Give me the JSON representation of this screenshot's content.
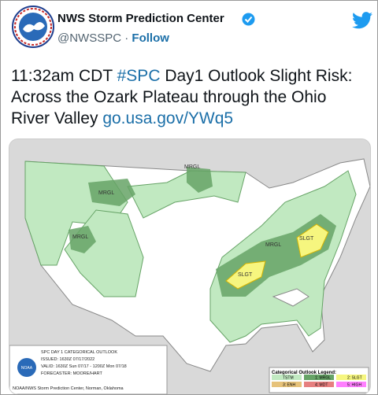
{
  "author": {
    "name": "NWS Storm Prediction Center",
    "handle": "@NWSSPC",
    "separator": "·",
    "follow": "Follow"
  },
  "tweet": {
    "text": "11:32am CDT",
    "hashtag": "#SPC",
    "text2": "Day1 Outlook Slight Risk: Across the Ozark Plateau through the Ohio River Valley",
    "link": "go.usa.gov/YWq5"
  },
  "map": {
    "labels": [
      "MRGL",
      "MRGL",
      "MRGL",
      "MRGL",
      "SLGT",
      "SLGT"
    ],
    "info": [
      "SPC DAY 1 CATEGORICAL OUTLOOK",
      "ISSUED: 1630Z 07/17/2022",
      "VALID: 1630Z Sun 07/17 - 1200Z Mon 07/18",
      "FORECASTER: MOORE/HART",
      "NOAA/NWS Storm Prediction Center, Norman, Oklahoma"
    ],
    "info_logo": "NOAA",
    "legend": {
      "title": "Categorical Outlook Legend:",
      "items": [
        "TSTM",
        "1: MRGL",
        "2: SLGT",
        "3: ENH",
        "4: MDT",
        "5: HIGH"
      ]
    }
  }
}
